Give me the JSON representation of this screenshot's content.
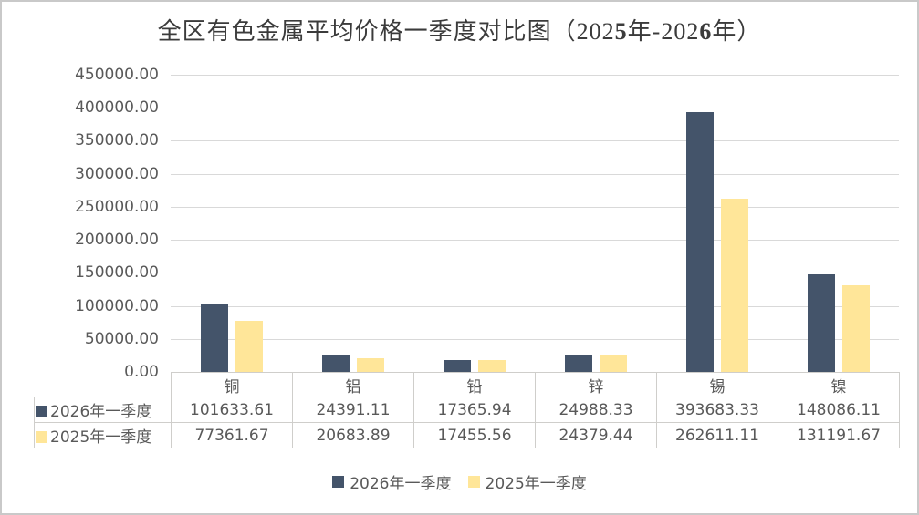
{
  "title": {
    "full": "全区有色金属平均价格一季度对比图（2025年-2026年）",
    "parts": [
      {
        "text": "全区有色金属平均价格一季度对比图（202",
        "bold": false
      },
      {
        "text": "5",
        "bold": true
      },
      {
        "text": "年-202",
        "bold": false
      },
      {
        "text": "6",
        "bold": true
      },
      {
        "text": "年）",
        "bold": false
      }
    ]
  },
  "chart_data": {
    "type": "bar",
    "categories": [
      "铜",
      "铝",
      "铅",
      "锌",
      "锡",
      "镍"
    ],
    "series": [
      {
        "name": "2026年一季度",
        "color": "#44546A",
        "values": [
          101633.61,
          24391.11,
          17365.94,
          24988.33,
          393683.33,
          148086.11
        ],
        "display": [
          "101633.61",
          "24391.11",
          "17365.94",
          "24988.33",
          "393683.33",
          "148086.11"
        ]
      },
      {
        "name": "2025年一季度",
        "color": "#FFE699",
        "values": [
          77361.67,
          20683.89,
          17455.56,
          24379.44,
          262611.11,
          131191.67
        ],
        "display": [
          "77361.67",
          "20683.89",
          "17455.56",
          "24379.44",
          "262611.11",
          "131191.67"
        ]
      }
    ],
    "ylim": [
      0,
      450000
    ],
    "ytick_step": 50000,
    "ytick_labels": [
      "450000.00",
      "400000.00",
      "350000.00",
      "300000.00",
      "250000.00",
      "200000.00",
      "150000.00",
      "100000.00",
      "50000.00",
      "0.00"
    ],
    "grid": true,
    "legend_position": "bottom",
    "data_table_shown": true
  },
  "colors": {
    "series_2026": "#44546A",
    "series_2025": "#FFE699",
    "gridline": "#D9D9D9",
    "axis_text": "#595959",
    "title_text": "#3B3B3B",
    "table_border": "#CFCECB",
    "frame_border": "#C9C9C9"
  }
}
